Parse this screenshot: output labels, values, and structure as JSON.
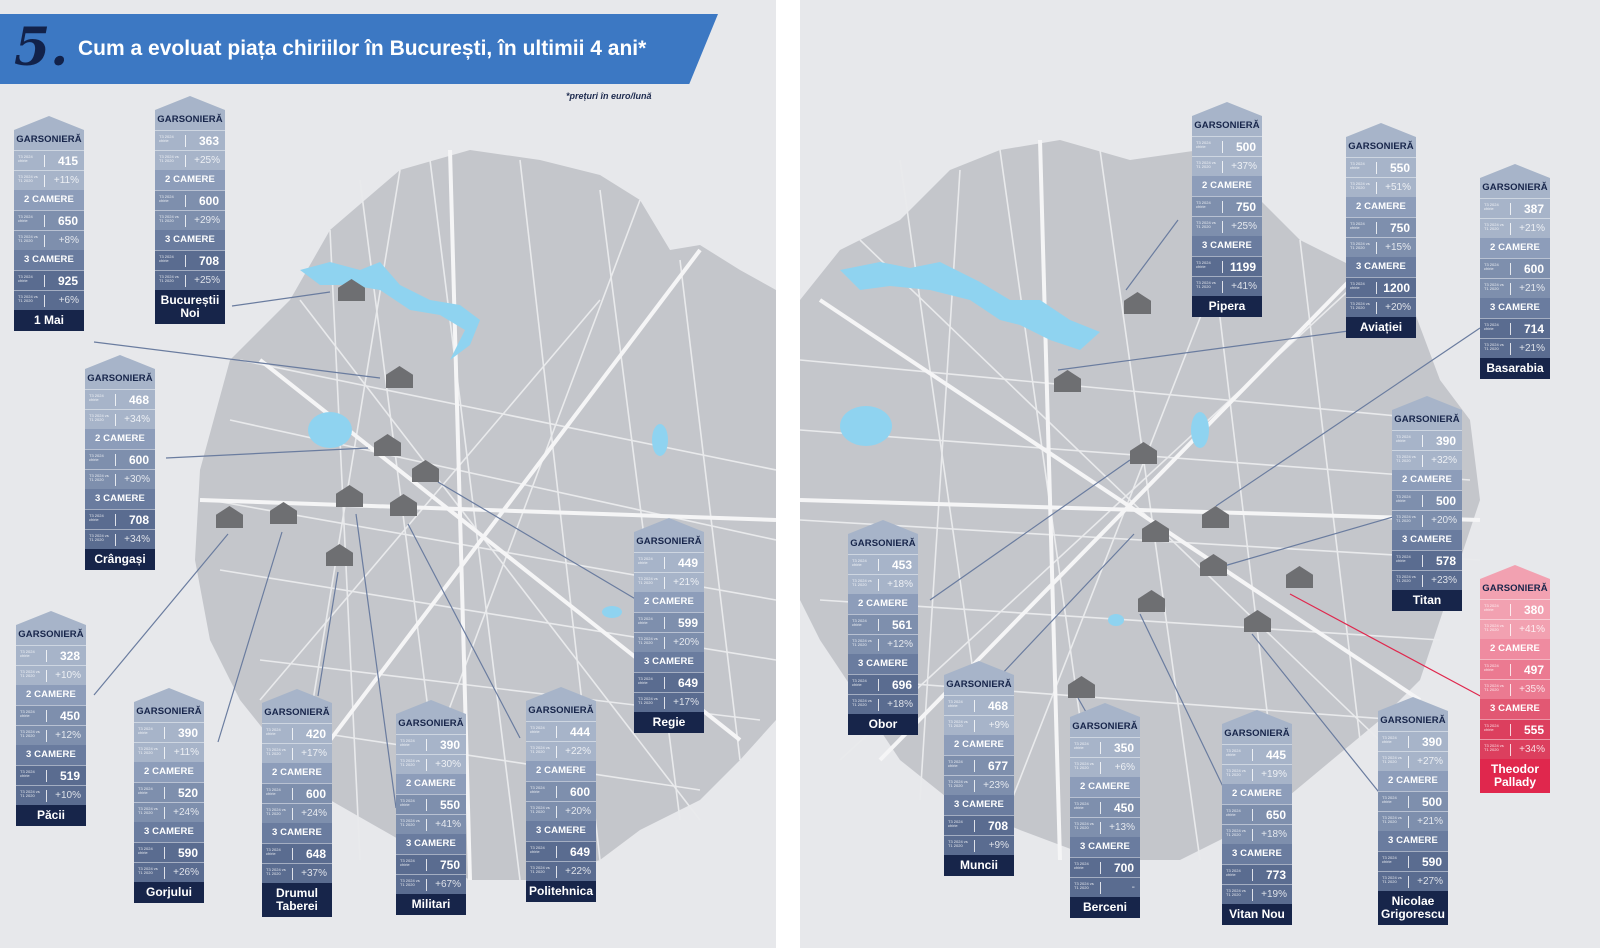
{
  "header": {
    "number": "5.",
    "title": "Cum a evoluat piața chiriilor în București, în ultimii 4 ani*"
  },
  "note": "*prețuri în euro/lună",
  "row_labels": {
    "price": "T3 2024 chirie",
    "change": "T3 2024 vs T1 2020"
  },
  "colors": {
    "header_blue": "#3c78c3",
    "navy": "#17254a",
    "highlight_red": "#e0274d",
    "map_gray": "#c4c6cb",
    "water": "#8fd3f0"
  },
  "icons": {
    "pin": "house-pin-icon"
  },
  "sections": {
    "s0": "GARSONIERĂ",
    "s1": "2 CAMERE",
    "s2": "3 CAMERE"
  },
  "neighborhoods": [
    {
      "name": "1 Mai",
      "garsoniera": {
        "price": "415",
        "change": "+11%"
      },
      "two_rooms": {
        "price": "650",
        "change": "+8%"
      },
      "three_rooms": {
        "price": "925",
        "change": "+6%"
      }
    },
    {
      "name": "Bucureștii Noi",
      "garsoniera": {
        "price": "363",
        "change": "+25%"
      },
      "two_rooms": {
        "price": "600",
        "change": "+29%"
      },
      "three_rooms": {
        "price": "708",
        "change": "+25%"
      }
    },
    {
      "name": "Crângași",
      "garsoniera": {
        "price": "468",
        "change": "+34%"
      },
      "two_rooms": {
        "price": "600",
        "change": "+30%"
      },
      "three_rooms": {
        "price": "708",
        "change": "+34%"
      }
    },
    {
      "name": "Păcii",
      "garsoniera": {
        "price": "328",
        "change": "+10%"
      },
      "two_rooms": {
        "price": "450",
        "change": "+12%"
      },
      "three_rooms": {
        "price": "519",
        "change": "+10%"
      }
    },
    {
      "name": "Gorjului",
      "garsoniera": {
        "price": "390",
        "change": "+11%"
      },
      "two_rooms": {
        "price": "520",
        "change": "+24%"
      },
      "three_rooms": {
        "price": "590",
        "change": "+26%"
      }
    },
    {
      "name": "Drumul Taberei",
      "garsoniera": {
        "price": "420",
        "change": "+17%"
      },
      "two_rooms": {
        "price": "600",
        "change": "+24%"
      },
      "three_rooms": {
        "price": "648",
        "change": "+37%"
      }
    },
    {
      "name": "Militari",
      "garsoniera": {
        "price": "390",
        "change": "+30%"
      },
      "two_rooms": {
        "price": "550",
        "change": "+41%"
      },
      "three_rooms": {
        "price": "750",
        "change": "+67%"
      }
    },
    {
      "name": "Politehnica",
      "garsoniera": {
        "price": "444",
        "change": "+22%"
      },
      "two_rooms": {
        "price": "600",
        "change": "+20%"
      },
      "three_rooms": {
        "price": "649",
        "change": "+22%"
      }
    },
    {
      "name": "Regie",
      "garsoniera": {
        "price": "449",
        "change": "+21%"
      },
      "two_rooms": {
        "price": "599",
        "change": "+20%"
      },
      "three_rooms": {
        "price": "649",
        "change": "+17%"
      }
    },
    {
      "name": "Pipera",
      "garsoniera": {
        "price": "500",
        "change": "+37%"
      },
      "two_rooms": {
        "price": "750",
        "change": "+25%"
      },
      "three_rooms": {
        "price": "1199",
        "change": "+41%"
      }
    },
    {
      "name": "Aviației",
      "garsoniera": {
        "price": "550",
        "change": "+51%"
      },
      "two_rooms": {
        "price": "750",
        "change": "+15%"
      },
      "three_rooms": {
        "price": "1200",
        "change": "+20%"
      }
    },
    {
      "name": "Basarabia",
      "garsoniera": {
        "price": "387",
        "change": "+21%"
      },
      "two_rooms": {
        "price": "600",
        "change": "+21%"
      },
      "three_rooms": {
        "price": "714",
        "change": "+21%"
      }
    },
    {
      "name": "Titan",
      "garsoniera": {
        "price": "390",
        "change": "+32%"
      },
      "two_rooms": {
        "price": "500",
        "change": "+20%"
      },
      "three_rooms": {
        "price": "578",
        "change": "+23%"
      }
    },
    {
      "name": "Obor",
      "garsoniera": {
        "price": "453",
        "change": "+18%"
      },
      "two_rooms": {
        "price": "561",
        "change": "+12%"
      },
      "three_rooms": {
        "price": "696",
        "change": "+18%"
      }
    },
    {
      "name": "Muncii",
      "garsoniera": {
        "price": "468",
        "change": "+9%"
      },
      "two_rooms": {
        "price": "677",
        "change": "+23%"
      },
      "three_rooms": {
        "price": "708",
        "change": "+9%"
      }
    },
    {
      "name": "Berceni",
      "garsoniera": {
        "price": "350",
        "change": "+6%"
      },
      "two_rooms": {
        "price": "450",
        "change": "+13%"
      },
      "three_rooms": {
        "price": "700",
        "change": "-"
      }
    },
    {
      "name": "Vitan Nou",
      "garsoniera": {
        "price": "445",
        "change": "+19%"
      },
      "two_rooms": {
        "price": "650",
        "change": "+18%"
      },
      "three_rooms": {
        "price": "773",
        "change": "+19%"
      }
    },
    {
      "name": "Nicolae Grigorescu",
      "garsoniera": {
        "price": "390",
        "change": "+27%"
      },
      "two_rooms": {
        "price": "500",
        "change": "+21%"
      },
      "three_rooms": {
        "price": "590",
        "change": "+27%"
      }
    },
    {
      "name": "Theodor Pallady",
      "highlight": true,
      "garsoniera": {
        "price": "380",
        "change": "+41%"
      },
      "two_rooms": {
        "price": "497",
        "change": "+35%"
      },
      "three_rooms": {
        "price": "555",
        "change": "+34%"
      }
    }
  ]
}
